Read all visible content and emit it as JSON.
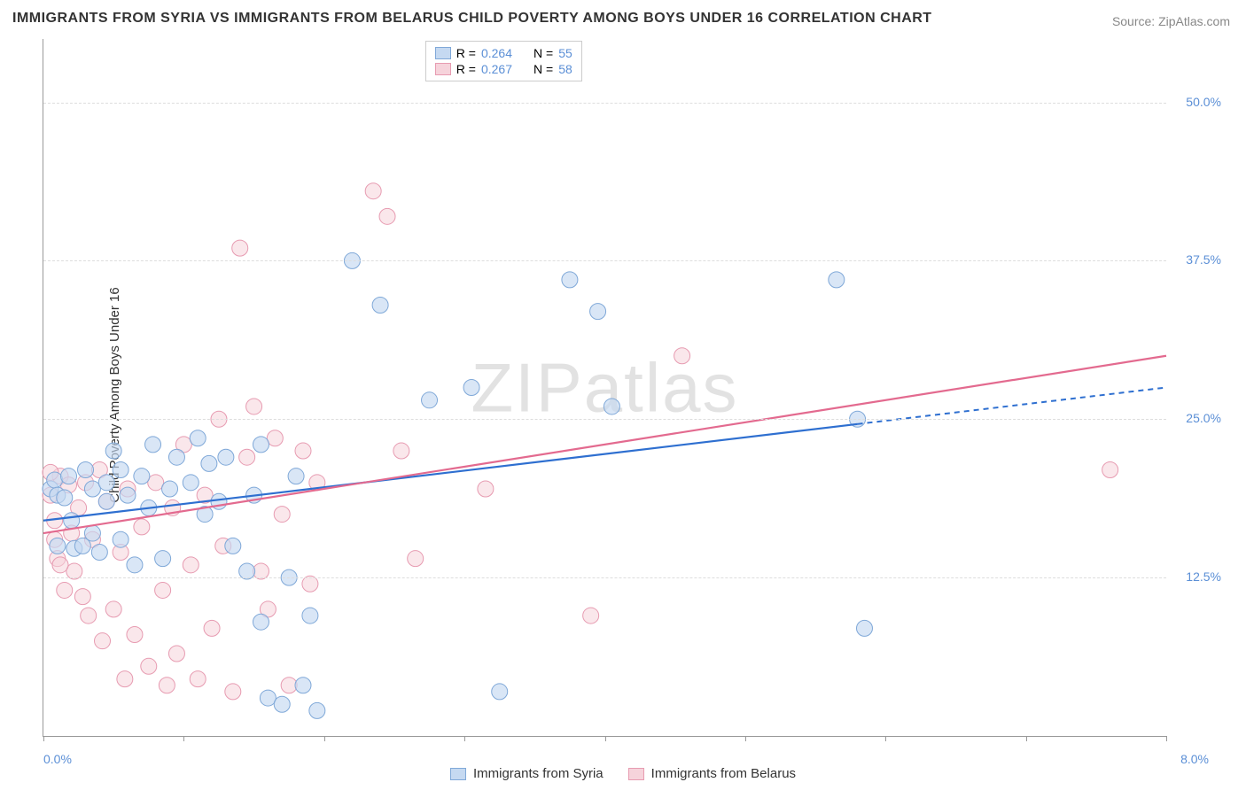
{
  "title": "IMMIGRANTS FROM SYRIA VS IMMIGRANTS FROM BELARUS CHILD POVERTY AMONG BOYS UNDER 16 CORRELATION CHART",
  "source": "Source: ZipAtlas.com",
  "y_axis_label": "Child Poverty Among Boys Under 16",
  "watermark": "ZIPatlas",
  "chart": {
    "type": "scatter-correlation",
    "background_color": "#ffffff",
    "grid_color": "#dddddd",
    "axis_color": "#999999",
    "xlim": [
      0,
      8
    ],
    "ylim": [
      0,
      55
    ],
    "x_ticks": [
      0,
      1,
      2,
      3,
      4,
      5,
      6,
      7,
      8
    ],
    "x_tick_labels": {
      "0": "0.0%",
      "8": "8.0%"
    },
    "y_gridlines": [
      12.5,
      25,
      37.5,
      50
    ],
    "y_tick_labels": {
      "12.5": "12.5%",
      "25": "25.0%",
      "37.5": "37.5%",
      "50": "50.0%"
    },
    "label_color": "#5b8fd6",
    "label_fontsize": 14,
    "title_fontsize": 16,
    "title_color": "#333333",
    "series": [
      {
        "name": "Immigrants from Syria",
        "color_fill": "#c5d9f1",
        "color_stroke": "#7fa8d8",
        "trend_color": "#2e6fd0",
        "trend_solid_to": 5.8,
        "trend_dashed_to": 8.0,
        "trend_y_start": 17.0,
        "trend_y_end": 27.5,
        "R": "0.264",
        "N": "55",
        "marker_radius": 9,
        "marker_opacity": 0.65,
        "points": [
          [
            0.05,
            19.5
          ],
          [
            0.08,
            20.2
          ],
          [
            0.1,
            19.0
          ],
          [
            0.1,
            15.0
          ],
          [
            0.15,
            18.8
          ],
          [
            0.18,
            20.5
          ],
          [
            0.2,
            17.0
          ],
          [
            0.22,
            14.8
          ],
          [
            0.28,
            15.0
          ],
          [
            0.3,
            21.0
          ],
          [
            0.35,
            19.5
          ],
          [
            0.35,
            16.0
          ],
          [
            0.4,
            14.5
          ],
          [
            0.45,
            18.5
          ],
          [
            0.45,
            20.0
          ],
          [
            0.5,
            22.5
          ],
          [
            0.55,
            21.0
          ],
          [
            0.55,
            15.5
          ],
          [
            0.6,
            19.0
          ],
          [
            0.65,
            13.5
          ],
          [
            0.7,
            20.5
          ],
          [
            0.75,
            18.0
          ],
          [
            0.78,
            23.0
          ],
          [
            0.85,
            14.0
          ],
          [
            0.9,
            19.5
          ],
          [
            0.95,
            22.0
          ],
          [
            1.05,
            20.0
          ],
          [
            1.1,
            23.5
          ],
          [
            1.15,
            17.5
          ],
          [
            1.18,
            21.5
          ],
          [
            1.25,
            18.5
          ],
          [
            1.3,
            22.0
          ],
          [
            1.35,
            15.0
          ],
          [
            1.45,
            13.0
          ],
          [
            1.5,
            19.0
          ],
          [
            1.55,
            23.0
          ],
          [
            1.55,
            9.0
          ],
          [
            1.6,
            3.0
          ],
          [
            1.7,
            2.5
          ],
          [
            1.75,
            12.5
          ],
          [
            1.8,
            20.5
          ],
          [
            1.85,
            4.0
          ],
          [
            1.9,
            9.5
          ],
          [
            1.95,
            2.0
          ],
          [
            2.2,
            37.5
          ],
          [
            2.4,
            34.0
          ],
          [
            2.75,
            26.5
          ],
          [
            3.05,
            27.5
          ],
          [
            3.25,
            3.5
          ],
          [
            3.75,
            36.0
          ],
          [
            3.95,
            33.5
          ],
          [
            4.05,
            26.0
          ],
          [
            5.65,
            36.0
          ],
          [
            5.8,
            25.0
          ],
          [
            5.85,
            8.5
          ]
        ]
      },
      {
        "name": "Immigrants from Belarus",
        "color_fill": "#f6d3db",
        "color_stroke": "#e79bb1",
        "trend_color": "#e36a8f",
        "trend_solid_to": 8.0,
        "trend_dashed_to": 8.0,
        "trend_y_start": 16.0,
        "trend_y_end": 30.0,
        "R": "0.267",
        "N": "58",
        "marker_radius": 9,
        "marker_opacity": 0.55,
        "points": [
          [
            0.05,
            19.0
          ],
          [
            0.08,
            17.0
          ],
          [
            0.1,
            14.0
          ],
          [
            0.12,
            20.5
          ],
          [
            0.15,
            11.5
          ],
          [
            0.18,
            19.8
          ],
          [
            0.2,
            16.0
          ],
          [
            0.22,
            13.0
          ],
          [
            0.25,
            18.0
          ],
          [
            0.28,
            11.0
          ],
          [
            0.3,
            20.0
          ],
          [
            0.32,
            9.5
          ],
          [
            0.35,
            15.5
          ],
          [
            0.4,
            21.0
          ],
          [
            0.42,
            7.5
          ],
          [
            0.45,
            18.5
          ],
          [
            0.5,
            10.0
          ],
          [
            0.55,
            14.5
          ],
          [
            0.58,
            4.5
          ],
          [
            0.6,
            19.5
          ],
          [
            0.65,
            8.0
          ],
          [
            0.7,
            16.5
          ],
          [
            0.75,
            5.5
          ],
          [
            0.8,
            20.0
          ],
          [
            0.85,
            11.5
          ],
          [
            0.88,
            4.0
          ],
          [
            0.92,
            18.0
          ],
          [
            0.95,
            6.5
          ],
          [
            1.0,
            23.0
          ],
          [
            1.05,
            13.5
          ],
          [
            1.1,
            4.5
          ],
          [
            1.15,
            19.0
          ],
          [
            1.2,
            8.5
          ],
          [
            1.25,
            25.0
          ],
          [
            1.28,
            15.0
          ],
          [
            1.35,
            3.5
          ],
          [
            1.4,
            38.5
          ],
          [
            1.45,
            22.0
          ],
          [
            1.5,
            26.0
          ],
          [
            1.55,
            13.0
          ],
          [
            1.6,
            10.0
          ],
          [
            1.65,
            23.5
          ],
          [
            1.7,
            17.5
          ],
          [
            1.75,
            4.0
          ],
          [
            1.85,
            22.5
          ],
          [
            1.9,
            12.0
          ],
          [
            1.95,
            20.0
          ],
          [
            2.35,
            43.0
          ],
          [
            2.45,
            41.0
          ],
          [
            2.55,
            22.5
          ],
          [
            2.65,
            14.0
          ],
          [
            3.15,
            19.5
          ],
          [
            3.9,
            9.5
          ],
          [
            4.55,
            30.0
          ],
          [
            7.6,
            21.0
          ],
          [
            0.05,
            20.8
          ],
          [
            0.08,
            15.5
          ],
          [
            0.12,
            13.5
          ]
        ]
      }
    ],
    "top_legend": {
      "rows": [
        {
          "swatch_fill": "#c5d9f1",
          "swatch_stroke": "#7fa8d8",
          "r_label": "R =",
          "r_val": "0.264",
          "n_label": "N =",
          "n_val": "55"
        },
        {
          "swatch_fill": "#f6d3db",
          "swatch_stroke": "#e79bb1",
          "r_label": "R =",
          "r_val": "0.267",
          "n_label": "N =",
          "n_val": "58"
        }
      ]
    },
    "bottom_legend": [
      {
        "swatch_fill": "#c5d9f1",
        "swatch_stroke": "#7fa8d8",
        "label": "Immigrants from Syria"
      },
      {
        "swatch_fill": "#f6d3db",
        "swatch_stroke": "#e79bb1",
        "label": "Immigrants from Belarus"
      }
    ]
  }
}
